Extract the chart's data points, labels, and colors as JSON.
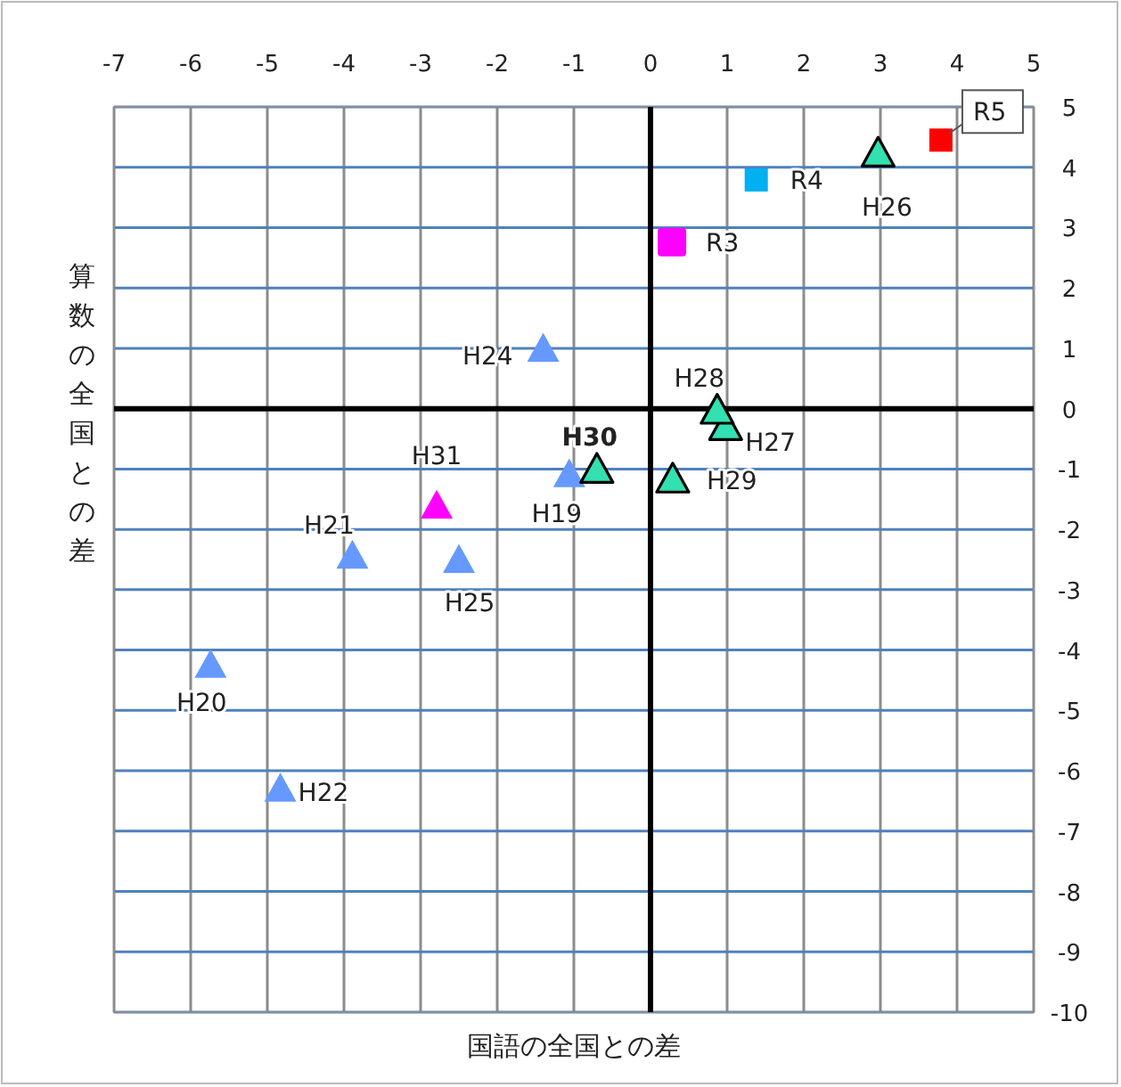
{
  "chart_data": {
    "type": "scatter",
    "xlabel": "国語の全国との差",
    "ylabel": "算数の全国との差",
    "xlim": [
      -7,
      5
    ],
    "xticks": [
      -7,
      -6,
      -5,
      -4,
      -3,
      -2,
      -1,
      0,
      1,
      2,
      3,
      4,
      5
    ],
    "ylim": [
      -10,
      5
    ],
    "yticks": [
      -10,
      -9,
      -8,
      -7,
      -6,
      -5,
      -4,
      -3,
      -2,
      -1,
      0,
      1,
      2,
      3,
      4,
      5
    ],
    "grid": true,
    "series": [
      {
        "marker": "triangle",
        "color": "#6699ff",
        "x": [
          -1.06,
          -5.74,
          -3.89,
          -4.83,
          -1.4,
          -2.5
        ],
        "values": [
          -1.11,
          -4.27,
          -2.46,
          -6.32,
          0.97,
          -2.53
        ],
        "value_labels": [
          "H19",
          "H20",
          "H21",
          "H22",
          "H24",
          "H25"
        ]
      },
      {
        "marker": "triangle",
        "color": "#33e0b0",
        "x": [
          2.97,
          0.98,
          0.87,
          0.29,
          -0.7
        ],
        "values": [
          4.21,
          -0.32,
          -0.05,
          -1.19,
          -1.03
        ],
        "value_labels": [
          "H26",
          "H27",
          "H28",
          "H29",
          "H30"
        ]
      },
      {
        "marker": "triangle",
        "color": "#ff00ff",
        "x": [
          -2.79
        ],
        "values": [
          -1.63
        ],
        "value_labels": [
          "H31"
        ]
      },
      {
        "marker": "square",
        "colors": [
          "#ff00ff",
          "#00b0f0",
          "#ff0000"
        ],
        "x": [
          0.28,
          1.38,
          3.79
        ],
        "values": [
          2.76,
          3.79,
          4.45
        ],
        "value_labels": [
          "R3",
          "R4",
          "R5"
        ]
      }
    ]
  }
}
